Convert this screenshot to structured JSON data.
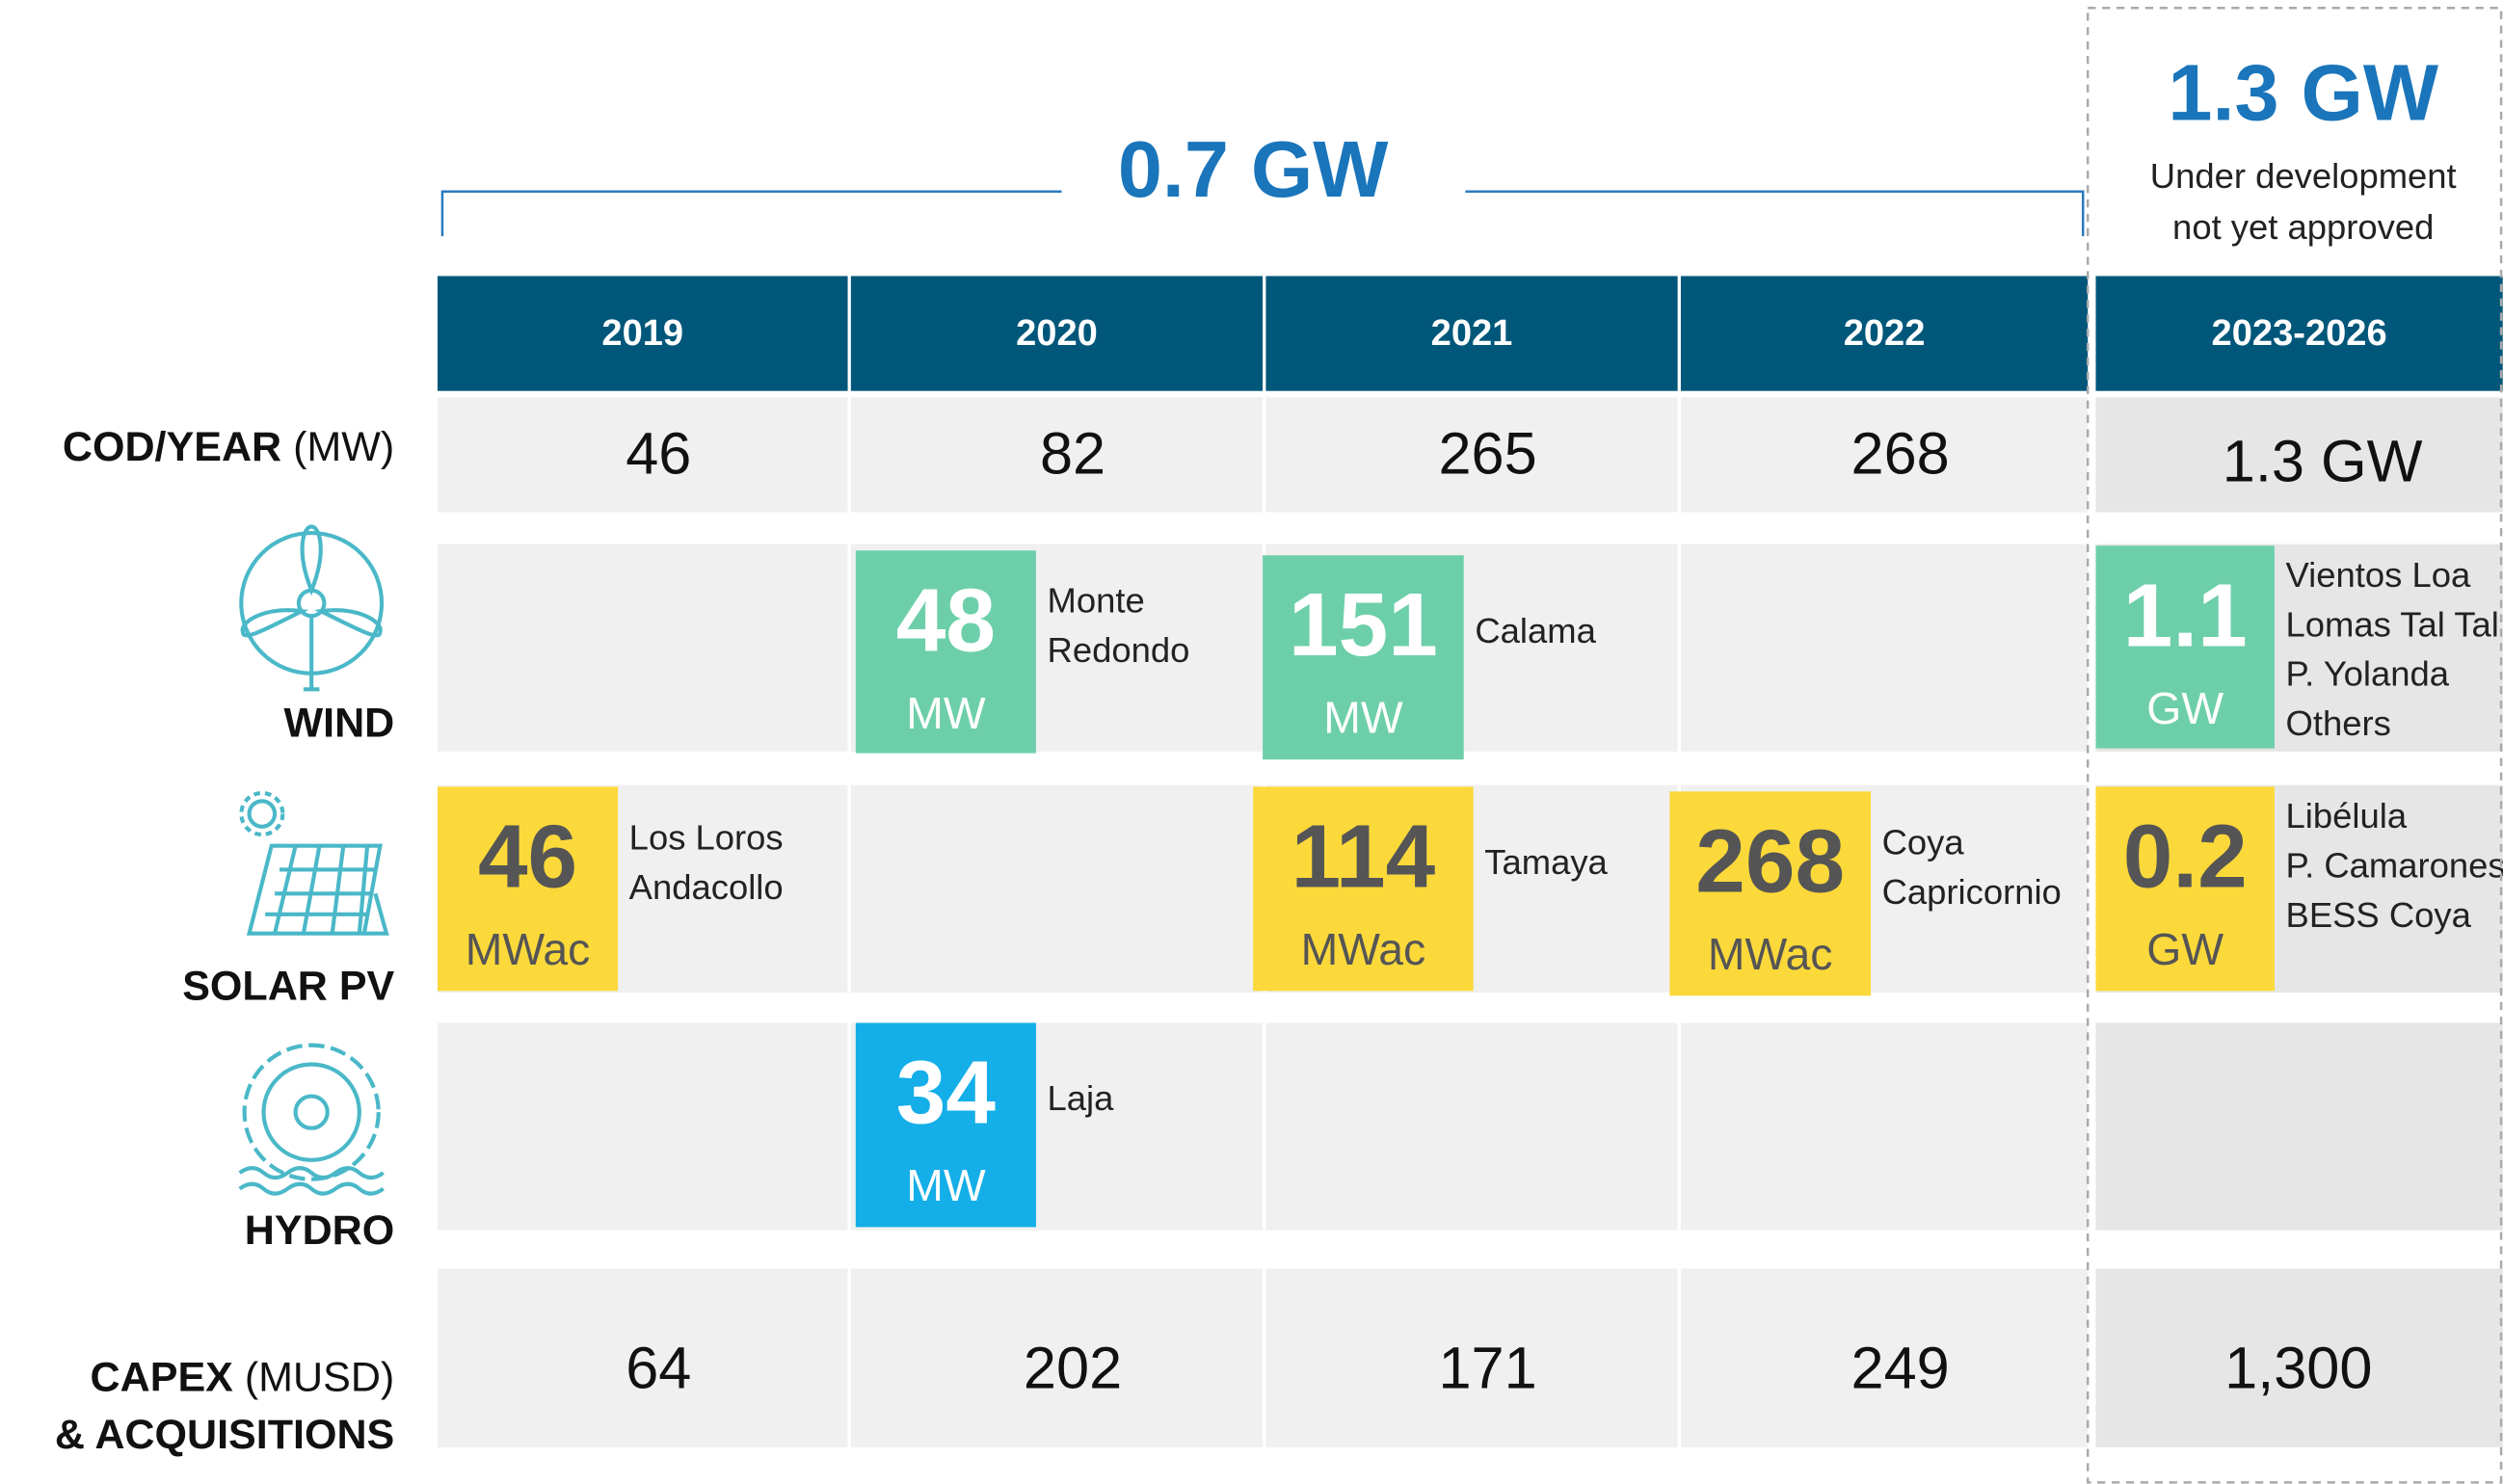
{
  "header": {
    "range_label": "0.7 GW",
    "future_total": "1.3 GW",
    "future_note": [
      "Under development",
      "not yet approved"
    ]
  },
  "columns": [
    "2019",
    "2020",
    "2021",
    "2022",
    "2023-2026"
  ],
  "cod": {
    "label": "COD/YEAR",
    "unit": "(MW)",
    "values": [
      "46",
      "82",
      "265",
      "268",
      "1.3 GW"
    ]
  },
  "wind": {
    "label": "WIND",
    "cells": [
      null,
      {
        "value": "48",
        "unit": "MW",
        "names": [
          "Monte",
          "Redondo"
        ]
      },
      {
        "value": "151",
        "unit": "MW",
        "names": [
          "Calama"
        ]
      },
      null,
      {
        "value": "1.1",
        "unit": "GW",
        "names": [
          "Vientos Loa",
          "Lomas Tal Tal",
          "P. Yolanda",
          "Others"
        ]
      }
    ]
  },
  "solar": {
    "label": "SOLAR PV",
    "cells": [
      {
        "value": "46",
        "unit": "MWac",
        "names": [
          "Los Loros",
          "Andacollo"
        ]
      },
      null,
      {
        "value": "114",
        "unit": "MWac",
        "names": [
          "Tamaya"
        ]
      },
      {
        "value": "268",
        "unit": "MWac",
        "names": [
          "Coya",
          "Capricornio"
        ]
      },
      {
        "value": "0.2",
        "unit": "GW",
        "names": [
          "Libélula",
          "P. Camarones",
          "BESS Coya"
        ]
      }
    ]
  },
  "hydro": {
    "label": "HYDRO",
    "cells": [
      null,
      {
        "value": "34",
        "unit": "MW",
        "names": [
          "Laja"
        ]
      },
      null,
      null,
      null
    ]
  },
  "capex": {
    "label": "CAPEX",
    "unit": "(MUSD)",
    "label2": "& ACQUISITIONS",
    "values": [
      "64",
      "202",
      "171",
      "249",
      "1,300"
    ]
  }
}
